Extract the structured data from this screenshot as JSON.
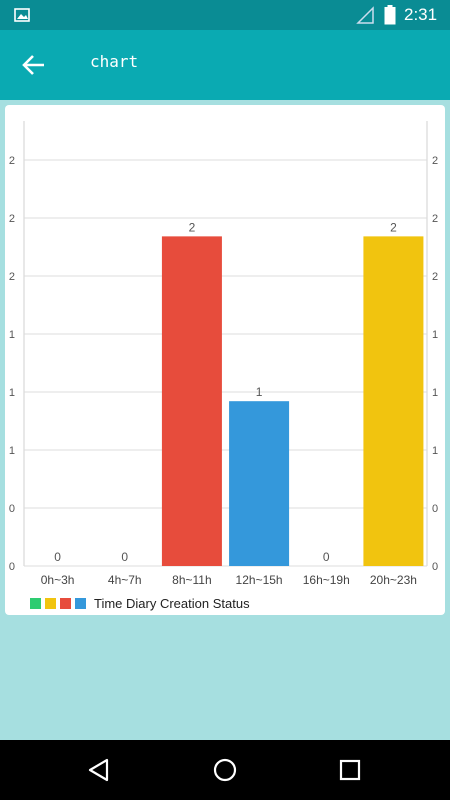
{
  "status_bar": {
    "time": "2:31",
    "icons": [
      "image-notification-icon",
      "signal-icon",
      "battery-icon"
    ]
  },
  "app_bar": {
    "title": "chart",
    "back_icon": "arrow-left-icon"
  },
  "chart_data": {
    "type": "bar",
    "categories": [
      "0h~3h",
      "4h~7h",
      "8h~11h",
      "12h~15h",
      "16h~19h",
      "20h~23h"
    ],
    "values": [
      0,
      0,
      2,
      1,
      0,
      2
    ],
    "value_labels": [
      "0",
      "0",
      "2",
      "1",
      "0",
      "2"
    ],
    "bar_colors": [
      "#2ecc71",
      "#f1c40f",
      "#e74c3c",
      "#3498db",
      "#2ecc71",
      "#f1c40f"
    ],
    "y_tick_labels": [
      "0",
      "0",
      "1",
      "1",
      "1",
      "2",
      "2",
      "2"
    ],
    "ylim": [
      0,
      2.7
    ],
    "grid": true,
    "title": "",
    "xlabel": "",
    "ylabel": "",
    "legend": {
      "placement": "bottom-left",
      "label": "Time Diary Creation Status",
      "colors": [
        "#2ecc71",
        "#f1c40f",
        "#e74c3c",
        "#3498db"
      ]
    }
  },
  "nav_bar": {
    "icons": [
      "back-triangle-icon",
      "home-circle-icon",
      "recents-square-icon"
    ]
  }
}
